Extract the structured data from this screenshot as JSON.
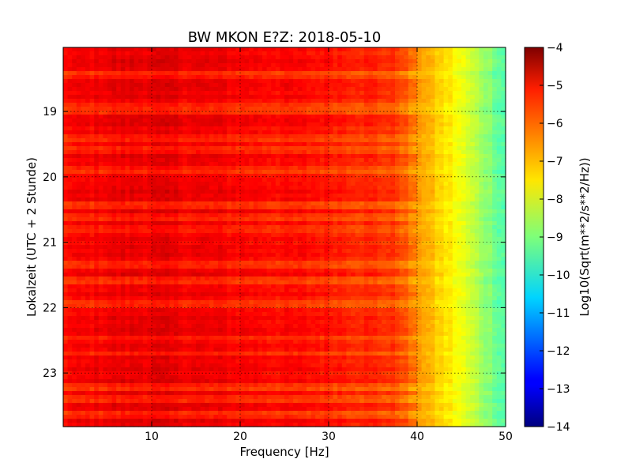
{
  "chart_data": {
    "type": "heatmap",
    "title": "BW MKON E?Z: 2018-05-10",
    "xlabel": "Frequency [Hz]",
    "ylabel": "Lokalzeit (UTC + 2 Stunde)",
    "xlim": [
      0,
      50
    ],
    "ylim": [
      18.02,
      23.82
    ],
    "y_inverted": true,
    "x_ticks": [
      10,
      20,
      30,
      40,
      50
    ],
    "y_ticks": [
      19,
      20,
      21,
      22,
      23
    ],
    "grid": true,
    "colormap": "jet",
    "colorbar": {
      "label": "Log10(Sqrt(m**2/s**2/Hz))",
      "range": [
        -14,
        -4
      ],
      "ticks": [
        -4,
        -5,
        -6,
        -7,
        -8,
        -9,
        -10,
        -11,
        -12,
        -13,
        -14
      ]
    },
    "spectral_profile": {
      "frequency_hz": [
        0,
        5,
        10,
        15,
        20,
        25,
        30,
        35,
        38,
        40,
        42,
        44,
        46,
        48,
        50
      ],
      "log10_amplitude": [
        -5.3,
        -5.1,
        -5.0,
        -5.1,
        -5.2,
        -5.3,
        -5.4,
        -5.6,
        -5.8,
        -6.6,
        -7.2,
        -7.6,
        -8.2,
        -8.8,
        -9.4
      ]
    },
    "dark_bands_hours": [
      18.45,
      18.9,
      19.0,
      19.4,
      19.6,
      19.9,
      20.45,
      20.6,
      20.8,
      21.35,
      21.6,
      21.95,
      22.45,
      22.7,
      23.2,
      23.4,
      23.65
    ]
  }
}
